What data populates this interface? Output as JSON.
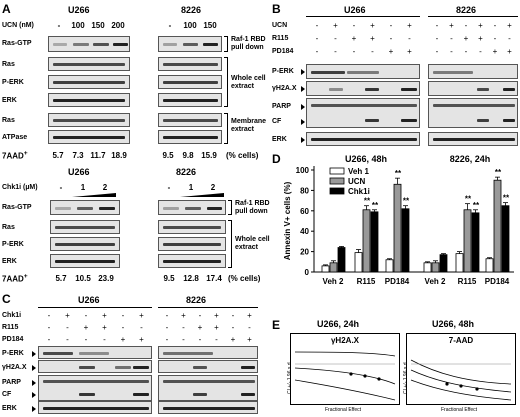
{
  "panelA": {
    "label": "A",
    "cell_lines": [
      "U266",
      "8226"
    ],
    "treatment_label": "UCN (nM)",
    "doses_u266": [
      "-",
      "100",
      "150",
      "200"
    ],
    "doses_8226": [
      "-",
      "100",
      "150"
    ],
    "rows": [
      "Ras-GTP",
      "Ras",
      "P-ERK",
      "ERK",
      "Ras",
      "ATPase"
    ],
    "groups": [
      "Raf-1 RBD pull down",
      "Whole cell extract",
      "Membrane extract"
    ],
    "aad_label": "7AAD",
    "aad_u266": [
      "5.7",
      "7.3",
      "11.7",
      "18.9"
    ],
    "aad_8226": [
      "9.5",
      "9.8",
      "15.9"
    ],
    "pct_label": "(% cells)",
    "sub_cell_lines": [
      "U266",
      "8226"
    ],
    "sub_treatment_label": "Chk1i (µM)",
    "sub_doses_u266": [
      "-",
      "1",
      "2"
    ],
    "sub_doses_8226": [
      "-",
      "1",
      "2"
    ],
    "sub_rows": [
      "Ras-GTP",
      "Ras",
      "P-ERK",
      "ERK"
    ],
    "sub_groups": [
      "Raf-1 RBD pull down",
      "Whole cell extract"
    ],
    "sub_aad_u266": [
      "5.7",
      "10.5",
      "23.9"
    ],
    "sub_aad_8226": [
      "9.5",
      "12.8",
      "17.4"
    ],
    "sub_pct_label": "(% cells)"
  },
  "panelB": {
    "label": "B",
    "cell_lines": [
      "U266",
      "8226"
    ],
    "treatments": [
      "UCN",
      "R115",
      "PD184"
    ],
    "marks_u266": [
      [
        "-",
        "+",
        "-",
        "+",
        "-",
        "+"
      ],
      [
        "-",
        "-",
        "+",
        "+",
        "-",
        "-"
      ],
      [
        "-",
        "-",
        "-",
        "-",
        "+",
        "+"
      ]
    ],
    "marks_8226": [
      [
        "-",
        "+",
        "-",
        "+",
        "-",
        "+"
      ],
      [
        "-",
        "-",
        "+",
        "+",
        "-",
        "-"
      ],
      [
        "-",
        "-",
        "-",
        "-",
        "+",
        "+"
      ]
    ],
    "rows": [
      "P-ERK",
      "γH2A.X",
      "PARP",
      "CF",
      "ERK"
    ]
  },
  "panelC": {
    "label": "C",
    "cell_lines": [
      "U266",
      "8226"
    ],
    "treatments": [
      "Chk1i",
      "R115",
      "PD184"
    ],
    "marks_u266": [
      [
        "-",
        "+",
        "-",
        "+",
        "-",
        "+"
      ],
      [
        "-",
        "-",
        "+",
        "+",
        "-",
        "-"
      ],
      [
        "-",
        "-",
        "-",
        "-",
        "+",
        "+"
      ]
    ],
    "marks_8226": [
      [
        "-",
        "+",
        "-",
        "+",
        "-",
        "+"
      ],
      [
        "-",
        "-",
        "+",
        "+",
        "-",
        "-"
      ],
      [
        "-",
        "-",
        "-",
        "-",
        "+",
        "+"
      ]
    ],
    "rows": [
      "P-ERK",
      "γH2A.X",
      "PARP",
      "CF",
      "ERK"
    ]
  },
  "panelD": {
    "label": "D",
    "chart_data": {
      "type": "bar",
      "subtitles": [
        "U266, 48h",
        "8226, 24h"
      ],
      "categories": [
        "Veh 2",
        "R115",
        "PD184",
        "Veh 2",
        "R115",
        "PD184"
      ],
      "series": [
        {
          "name": "Veh 1",
          "values": [
            6,
            19,
            12,
            9,
            18,
            13
          ],
          "errors": [
            1,
            3,
            1,
            1,
            2,
            1
          ],
          "color": "#ffffff",
          "stars": [
            "",
            "",
            "",
            "",
            "",
            ""
          ]
        },
        {
          "name": "UCN",
          "values": [
            9,
            61,
            86,
            9,
            61,
            90
          ],
          "errors": [
            2,
            4,
            6,
            2,
            6,
            3
          ],
          "color": "#999999",
          "stars": [
            "",
            "**",
            "**",
            "",
            "**",
            "**"
          ]
        },
        {
          "name": "Chk1i",
          "values": [
            24,
            59,
            62,
            17,
            58,
            65
          ],
          "errors": [
            1,
            2,
            3,
            1,
            3,
            3
          ],
          "color": "#000000",
          "stars": [
            "",
            "**",
            "**",
            "",
            "**",
            "**"
          ]
        }
      ],
      "ylabel": "Annexin V+ cells (%)",
      "ylim": [
        0,
        100
      ],
      "yticks": [
        "0",
        "20",
        "40",
        "60",
        "80",
        "100"
      ]
    }
  },
  "panelE": {
    "label": "E",
    "plots": [
      {
        "title": "U266, 24h",
        "subtitle": "γH2A.X",
        "ylabel": "CI +/- 1.96 s.d.",
        "xlabel": "Fractional Effect"
      },
      {
        "title": "U266, 48h",
        "subtitle": "7-AAD",
        "ylabel": "CI +/- 1.96 s.d.",
        "xlabel": "Fractional Effect"
      }
    ]
  }
}
